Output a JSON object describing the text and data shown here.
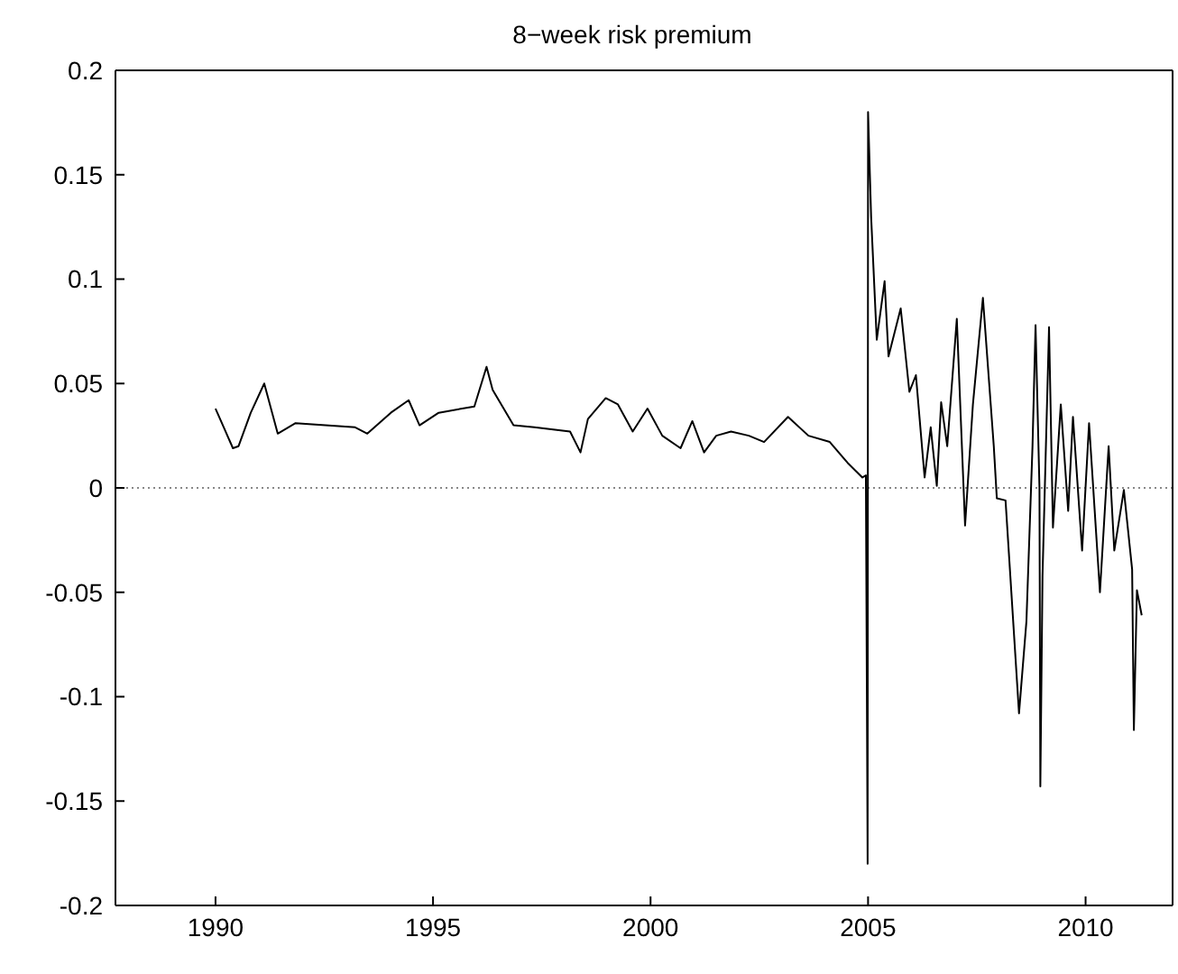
{
  "chart_data": {
    "type": "line",
    "title": "8−week risk premium",
    "xlim": [
      1987.7,
      2012
    ],
    "xticks": [
      1990,
      1995,
      2000,
      2005,
      2010
    ],
    "ylim": [
      -0.2,
      0.2
    ],
    "yticks": [
      -0.2,
      -0.15,
      -0.1,
      -0.05,
      0,
      0.05,
      0.1,
      0.15,
      0.2
    ],
    "legend": false,
    "ref_lines": [
      {
        "axis": "y",
        "value": 0,
        "color": "#888888",
        "line_style": "dotted"
      }
    ],
    "series": [
      {
        "color": "#000000",
        "x": [
          1990.0,
          1990.19,
          1990.4,
          1990.53,
          1990.81,
          1991.12,
          1991.43,
          1991.84,
          1993.21,
          1993.49,
          1994.03,
          1994.44,
          1994.69,
          1995.13,
          1995.95,
          1996.23,
          1996.37,
          1996.85,
          1997.33,
          1998.15,
          1998.39,
          1998.56,
          1998.97,
          1999.25,
          1999.59,
          1999.93,
          2000.27,
          2000.69,
          2000.96,
          2001.23,
          2001.51,
          2001.85,
          2002.26,
          2002.61,
          2003.16,
          2003.63,
          2004.12,
          2004.53,
          2004.87,
          2004.95,
          2004.99,
          2005.0,
          2005.07,
          2005.2,
          2005.38,
          2005.47,
          2005.75,
          2005.95,
          2006.1,
          2006.3,
          2006.44,
          2006.58,
          2006.68,
          2006.82,
          2007.04,
          2007.23,
          2007.41,
          2007.64,
          2007.89,
          2007.96,
          2008.16,
          2008.47,
          2008.64,
          2008.78,
          2008.85,
          2008.94,
          2008.96,
          2009.01,
          2009.16,
          2009.25,
          2009.43,
          2009.6,
          2009.71,
          2009.92,
          2010.08,
          2010.33,
          2010.53,
          2010.66,
          2010.88,
          2011.07,
          2011.11,
          2011.18,
          2011.29
        ],
        "values": [
          0.038,
          0.029,
          0.019,
          0.02,
          0.036,
          0.05,
          0.026,
          0.031,
          0.029,
          0.026,
          0.036,
          0.042,
          0.03,
          0.036,
          0.039,
          0.058,
          0.047,
          0.03,
          0.029,
          0.027,
          0.017,
          0.033,
          0.043,
          0.04,
          0.027,
          0.038,
          0.025,
          0.019,
          0.032,
          0.017,
          0.025,
          0.027,
          0.025,
          0.022,
          0.034,
          0.025,
          0.022,
          0.012,
          0.005,
          0.006,
          -0.18,
          0.18,
          0.13,
          0.071,
          0.099,
          0.063,
          0.086,
          0.046,
          0.054,
          0.005,
          0.029,
          0.001,
          0.041,
          0.02,
          0.081,
          -0.018,
          0.04,
          0.091,
          0.02,
          -0.005,
          -0.006,
          -0.108,
          -0.064,
          0.02,
          0.078,
          0,
          -0.143,
          -0.042,
          0.077,
          -0.019,
          0.04,
          -0.011,
          0.034,
          -0.03,
          0.031,
          -0.05,
          0.02,
          -0.03,
          -0.001,
          -0.039,
          -0.116,
          -0.049,
          -0.061
        ]
      }
    ]
  }
}
